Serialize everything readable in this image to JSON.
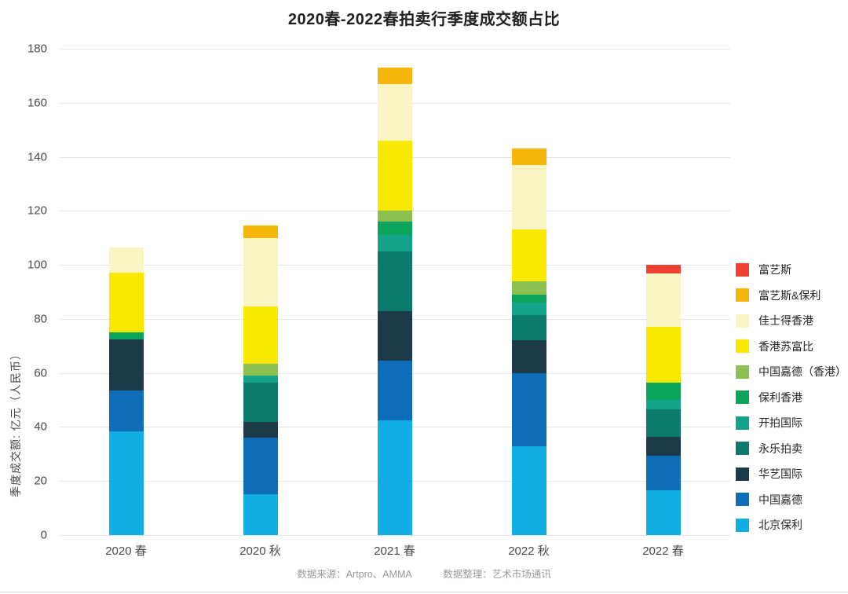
{
  "title": "2020春-2022春拍卖行季度成交额占比",
  "y_axis": {
    "title": "季度成交额: 亿元（人民币）",
    "ticks": [
      0,
      20,
      40,
      60,
      80,
      100,
      120,
      140,
      160,
      180
    ]
  },
  "footer": {
    "source": "数据来源：Artpro、AMMA",
    "editor": "数据整理：艺术市场通讯"
  },
  "chart_data": {
    "type": "bar",
    "stacked": true,
    "title": "2020春-2022春拍卖行季度成交额占比",
    "ylabel": "季度成交额: 亿元（人民币）",
    "xlabel": "",
    "ylim": [
      0,
      180
    ],
    "grid": true,
    "legend_position": "right",
    "categories": [
      "2020 春",
      "2020 秋",
      "2021 春",
      "2022 秋",
      "2022 春"
    ],
    "series_bottom_to_top": [
      {
        "name": "北京保利",
        "color": "#12ade3",
        "values": [
          38.5,
          15,
          42.5,
          33,
          16.5
        ]
      },
      {
        "name": "中国嘉德",
        "color": "#0e6db6",
        "values": [
          15,
          21,
          22,
          27,
          13
        ]
      },
      {
        "name": "华艺国际",
        "color": "#1d3a4a",
        "values": [
          19,
          6,
          18.5,
          12,
          7
        ]
      },
      {
        "name": "永乐拍卖",
        "color": "#0d7a6e",
        "values": [
          0,
          14.5,
          22,
          9.5,
          10
        ]
      },
      {
        "name": "开拍国际",
        "color": "#14a28b",
        "values": [
          0,
          2.5,
          6,
          4.5,
          3.5
        ]
      },
      {
        "name": "保利香港",
        "color": "#0aa55a",
        "values": [
          2.5,
          0,
          5,
          3,
          6.5
        ]
      },
      {
        "name": "中国嘉德（香港）",
        "color": "#8cc152",
        "values": [
          0,
          4.5,
          4,
          5,
          0
        ]
      },
      {
        "name": "香港苏富比",
        "color": "#f9e800",
        "values": [
          22,
          21,
          26,
          19,
          20.5
        ]
      },
      {
        "name": "佳士得香港",
        "color": "#faf3c3",
        "values": [
          9.5,
          25.5,
          21,
          24,
          20
        ]
      },
      {
        "name": "富艺斯&保利",
        "color": "#f6b60b",
        "values": [
          0,
          4.5,
          6,
          6,
          0
        ]
      },
      {
        "name": "富艺斯",
        "color": "#ee3f33",
        "values": [
          0,
          0,
          0,
          0,
          3
        ]
      }
    ],
    "totals": [
      106.5,
      114.5,
      173,
      143,
      100
    ],
    "legend_order_top_to_bottom": [
      "富艺斯",
      "富艺斯&保利",
      "佳士得香港",
      "香港苏富比",
      "中国嘉德（香港）",
      "保利香港",
      "开拍国际",
      "永乐拍卖",
      "华艺国际",
      "中国嘉德",
      "北京保利"
    ]
  }
}
